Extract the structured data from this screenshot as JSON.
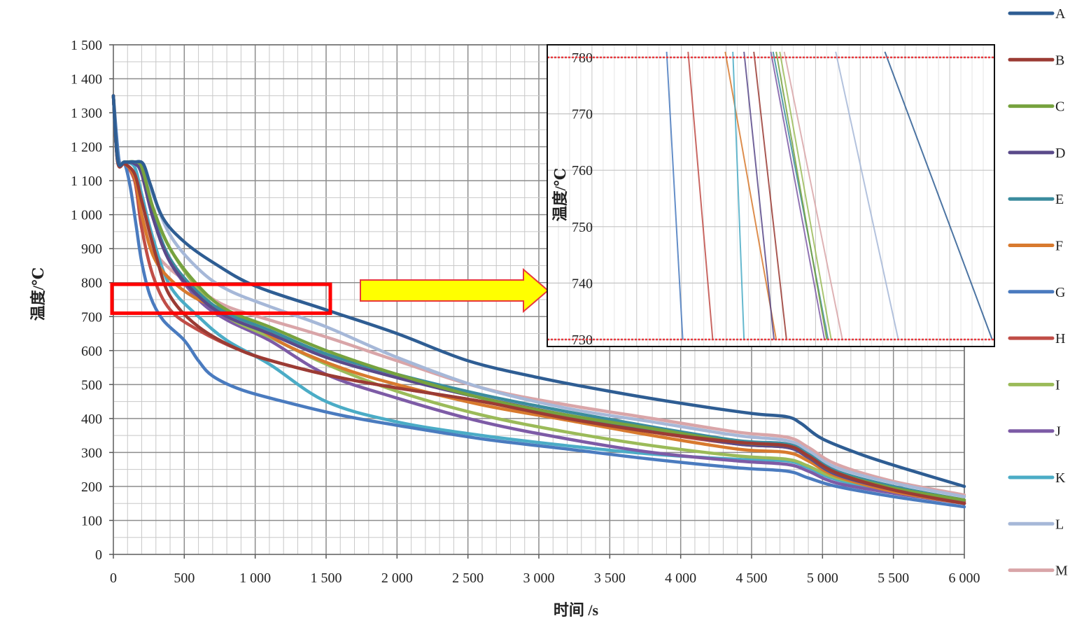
{
  "chart_data": [
    {
      "type": "line",
      "xlabel": "时间 /s",
      "ylabel": "温度/℃",
      "xlim": [
        0,
        6000
      ],
      "ylim": [
        0,
        1500
      ],
      "x_ticks": [
        0,
        500,
        1000,
        1500,
        2000,
        2500,
        3000,
        3500,
        4000,
        4500,
        5000,
        5500,
        6000
      ],
      "x_tick_labels": [
        "0",
        "500",
        "1 000",
        "1 500",
        "2 000",
        "2 500",
        "3 000",
        "3 500",
        "4 000",
        "4 500",
        "5 000",
        "5 500",
        "6 000"
      ],
      "y_ticks": [
        0,
        100,
        200,
        300,
        400,
        500,
        600,
        700,
        800,
        900,
        1000,
        1100,
        1200,
        1300,
        1400,
        1500
      ],
      "y_tick_labels": [
        "0",
        "100",
        "200",
        "300",
        "400",
        "500",
        "600",
        "700",
        "800",
        "900",
        "1 000",
        "1 100",
        "1 200",
        "1 300",
        "1 400",
        "1 500"
      ],
      "grid": true,
      "legend": "right",
      "series": [
        {
          "name": "A",
          "color": "#2e5d93",
          "x": [
            0,
            30,
            80,
            150,
            210,
            260,
            350,
            500,
            700,
            1000,
            1500,
            2000,
            2500,
            3000,
            3500,
            4000,
            4500,
            4750,
            4850,
            5000,
            5300,
            5600,
            6000
          ],
          "y": [
            1350,
            1160,
            1155,
            1155,
            1150,
            1090,
            990,
            920,
            860,
            790,
            720,
            650,
            570,
            520,
            480,
            445,
            415,
            405,
            385,
            340,
            290,
            250,
            200
          ]
        },
        {
          "name": "B",
          "color": "#9b3b34",
          "x": [
            0,
            30,
            80,
            150,
            200,
            300,
            400,
            600,
            900,
            1200,
            1600,
            2000,
            2600,
            3200,
            3800,
            4400,
            4750,
            4900,
            5100,
            5500,
            6000
          ],
          "y": [
            1350,
            1155,
            1150,
            1120,
            1040,
            880,
            760,
            670,
            600,
            560,
            520,
            490,
            450,
            400,
            360,
            330,
            320,
            290,
            240,
            190,
            150
          ]
        },
        {
          "name": "C",
          "color": "#76a23e",
          "x": [
            0,
            30,
            80,
            150,
            200,
            280,
            400,
            600,
            800,
            1100,
            1500,
            2000,
            2600,
            3200,
            3800,
            4400,
            4750,
            4900,
            5100,
            5500,
            6000
          ],
          "y": [
            1350,
            1160,
            1155,
            1155,
            1140,
            1020,
            900,
            790,
            720,
            670,
            600,
            530,
            460,
            410,
            370,
            330,
            320,
            290,
            240,
            195,
            160
          ]
        },
        {
          "name": "D",
          "color": "#5a4a8a",
          "x": [
            0,
            30,
            80,
            150,
            200,
            280,
            400,
            600,
            800,
            1100,
            1500,
            2000,
            2600,
            3200,
            3800,
            4400,
            4750,
            4900,
            5100,
            5500,
            6000
          ],
          "y": [
            1350,
            1160,
            1155,
            1150,
            1120,
            990,
            860,
            760,
            700,
            650,
            580,
            520,
            460,
            410,
            365,
            325,
            315,
            285,
            235,
            190,
            150
          ]
        },
        {
          "name": "E",
          "color": "#3b8c9e",
          "x": [
            0,
            30,
            80,
            150,
            200,
            280,
            400,
            600,
            800,
            1100,
            1500,
            2000,
            2600,
            3200,
            3800,
            4400,
            4750,
            4900,
            5100,
            5500,
            6000
          ],
          "y": [
            1350,
            1160,
            1155,
            1155,
            1140,
            1000,
            870,
            770,
            710,
            660,
            590,
            530,
            470,
            420,
            375,
            335,
            325,
            295,
            245,
            200,
            160
          ]
        },
        {
          "name": "F",
          "color": "#d87a2e",
          "x": [
            0,
            30,
            80,
            150,
            200,
            280,
            400,
            600,
            900,
            1200,
            1600,
            2000,
            2600,
            3200,
            3800,
            4400,
            4750,
            4900,
            5100,
            5500,
            6000
          ],
          "y": [
            1350,
            1155,
            1150,
            1110,
            1000,
            880,
            810,
            750,
            700,
            620,
            550,
            500,
            440,
            395,
            350,
            310,
            300,
            275,
            230,
            185,
            150
          ]
        },
        {
          "name": "G",
          "color": "#4a7bbf",
          "x": [
            0,
            40,
            80,
            120,
            160,
            200,
            260,
            350,
            500,
            600,
            700,
            900,
            1200,
            1600,
            2000,
            2600,
            3200,
            3800,
            4400,
            4750,
            4900,
            5100,
            5500,
            6000
          ],
          "y": [
            1350,
            1160,
            1150,
            1080,
            970,
            860,
            760,
            690,
            630,
            570,
            525,
            485,
            450,
            410,
            380,
            340,
            310,
            280,
            255,
            245,
            225,
            200,
            170,
            140
          ]
        },
        {
          "name": "H",
          "color": "#c04d47",
          "x": [
            0,
            30,
            80,
            150,
            200,
            280,
            400,
            600,
            900,
            1200,
            1600,
            2000,
            2600,
            3200,
            3800,
            4400,
            4750,
            4900,
            5100,
            5500,
            6000
          ],
          "y": [
            1350,
            1155,
            1150,
            1100,
            960,
            820,
            720,
            660,
            600,
            560,
            520,
            490,
            450,
            405,
            360,
            325,
            315,
            290,
            240,
            195,
            155
          ]
        },
        {
          "name": "I",
          "color": "#9bbb59",
          "x": [
            0,
            30,
            80,
            150,
            200,
            280,
            400,
            600,
            800,
            1100,
            1500,
            2000,
            2600,
            3200,
            3800,
            4400,
            4750,
            4900,
            5100,
            5500,
            6000
          ],
          "y": [
            1350,
            1160,
            1155,
            1155,
            1140,
            1020,
            900,
            780,
            700,
            640,
            560,
            480,
            410,
            360,
            320,
            290,
            280,
            260,
            225,
            190,
            155
          ]
        },
        {
          "name": "J",
          "color": "#7d5ba6",
          "x": [
            0,
            30,
            80,
            150,
            200,
            280,
            400,
            600,
            800,
            1100,
            1500,
            2000,
            2600,
            3200,
            3800,
            4400,
            4750,
            4900,
            5100,
            5500,
            6000
          ],
          "y": [
            1350,
            1160,
            1155,
            1150,
            1120,
            990,
            860,
            750,
            690,
            630,
            530,
            460,
            390,
            340,
            300,
            275,
            265,
            245,
            210,
            180,
            150
          ]
        },
        {
          "name": "K",
          "color": "#4bacc6",
          "x": [
            0,
            30,
            80,
            150,
            200,
            280,
            400,
            600,
            800,
            1100,
            1500,
            2000,
            2600,
            3200,
            3800,
            4400,
            4750,
            4900,
            5100,
            5500,
            6000
          ],
          "y": [
            1350,
            1160,
            1155,
            1140,
            1060,
            930,
            790,
            700,
            630,
            560,
            450,
            390,
            350,
            320,
            295,
            280,
            275,
            255,
            220,
            185,
            150
          ]
        },
        {
          "name": "L",
          "color": "#a6b8d8",
          "x": [
            0,
            30,
            80,
            150,
            200,
            260,
            400,
            600,
            800,
            1100,
            1500,
            2000,
            2600,
            3200,
            3800,
            4400,
            4750,
            4900,
            5100,
            5500,
            6000
          ],
          "y": [
            1350,
            1160,
            1155,
            1155,
            1150,
            1080,
            940,
            840,
            780,
            730,
            670,
            580,
            490,
            430,
            390,
            350,
            335,
            305,
            255,
            210,
            170
          ]
        },
        {
          "name": "M",
          "color": "#d9a5a8",
          "x": [
            0,
            30,
            80,
            150,
            200,
            280,
            400,
            600,
            800,
            1100,
            1500,
            2000,
            2600,
            3200,
            3800,
            4400,
            4750,
            4900,
            5100,
            5500,
            6000
          ],
          "y": [
            1350,
            1160,
            1150,
            1100,
            1000,
            900,
            840,
            780,
            730,
            690,
            640,
            570,
            490,
            440,
            400,
            360,
            345,
            315,
            265,
            215,
            175
          ]
        }
      ]
    },
    {
      "type": "line",
      "ylabel": "温度/℃",
      "ylim": [
        730,
        780
      ],
      "y_ticks": [
        730,
        740,
        750,
        760,
        770,
        780
      ],
      "y_tick_labels": [
        "730",
        "740",
        "750",
        "760",
        "770",
        "780"
      ],
      "reference_lines": [
        780,
        730
      ],
      "reference_color": "#e8383d",
      "grid": true,
      "series": [
        {
          "name": "G",
          "color": "#4a7bbf",
          "x": [
            0.267,
            0.303
          ],
          "y": [
            781,
            730
          ]
        },
        {
          "name": "H",
          "color": "#c04d47",
          "x": [
            0.315,
            0.37
          ],
          "y": [
            781,
            730
          ]
        },
        {
          "name": "F",
          "color": "#d87a2e",
          "x": [
            0.398,
            0.512
          ],
          "y": [
            781,
            730
          ]
        },
        {
          "name": "K",
          "color": "#4bacc6",
          "x": [
            0.415,
            0.44
          ],
          "y": [
            781,
            730
          ]
        },
        {
          "name": "D",
          "color": "#5a4a8a",
          "x": [
            0.44,
            0.507
          ],
          "y": [
            781,
            730
          ]
        },
        {
          "name": "B",
          "color": "#9b3b34",
          "x": [
            0.462,
            0.535
          ],
          "y": [
            781,
            730
          ]
        },
        {
          "name": "E",
          "color": "#3b8c9e",
          "x": [
            0.505,
            0.628
          ],
          "y": [
            781,
            730
          ]
        },
        {
          "name": "J",
          "color": "#7d5ba6",
          "x": [
            0.5,
            0.62
          ],
          "y": [
            781,
            730
          ]
        },
        {
          "name": "C",
          "color": "#76a23e",
          "x": [
            0.512,
            0.625
          ],
          "y": [
            781,
            730
          ]
        },
        {
          "name": "I",
          "color": "#9bbb59",
          "x": [
            0.52,
            0.635
          ],
          "y": [
            781,
            730
          ]
        },
        {
          "name": "M",
          "color": "#d9a5a8",
          "x": [
            0.53,
            0.66
          ],
          "y": [
            781,
            730
          ]
        },
        {
          "name": "L",
          "color": "#a6b8d8",
          "x": [
            0.645,
            0.785
          ],
          "y": [
            781,
            730
          ]
        },
        {
          "name": "A",
          "color": "#2e5d93",
          "x": [
            0.755,
            0.995
          ],
          "y": [
            781,
            730
          ]
        }
      ]
    }
  ],
  "highlight": {
    "x_range": [
      0,
      1500
    ],
    "y_range": [
      710,
      795
    ],
    "color": "#ff0000",
    "arrow_color": "#ffff00",
    "arrow_border": "#e8383d"
  }
}
